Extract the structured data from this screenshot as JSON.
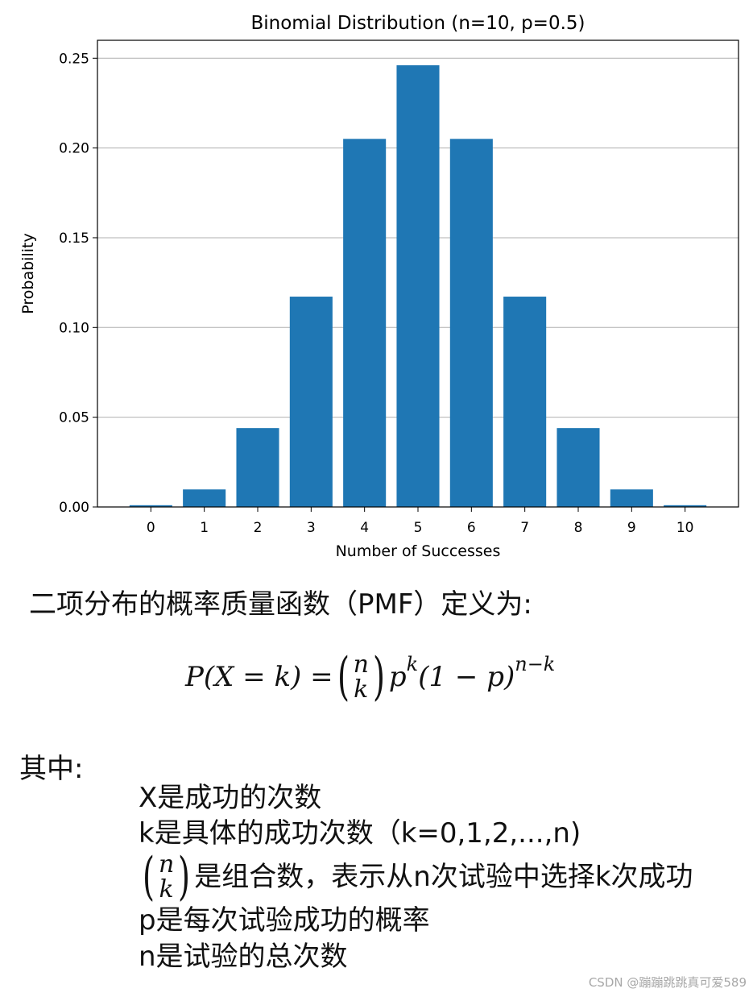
{
  "chart_data": {
    "type": "bar",
    "title": "Binomial Distribution (n=10, p=0.5)",
    "xlabel": "Number of Successes",
    "ylabel": "Probability",
    "categories": [
      "0",
      "1",
      "2",
      "3",
      "4",
      "5",
      "6",
      "7",
      "8",
      "9",
      "10"
    ],
    "values": [
      0.000977,
      0.009766,
      0.043945,
      0.117188,
      0.205078,
      0.246094,
      0.205078,
      0.117188,
      0.043945,
      0.009766,
      0.000977
    ],
    "ylim": [
      0,
      0.26
    ],
    "yticks": [
      "0.00",
      "0.05",
      "0.10",
      "0.15",
      "0.20",
      "0.25"
    ],
    "grid": "y",
    "color": "#1f77b4"
  },
  "text": {
    "intro": "二项分布的概率质量函数（PMF）定义为:",
    "formula_lhs": "P(X = k) = ",
    "formula_n": "n",
    "formula_k": "k",
    "formula_p": "p",
    "formula_exp_k": "k",
    "formula_mid": "(1 − p)",
    "formula_exp_nk": "n−k",
    "where": "其中:",
    "item_x": "X是成功的次数",
    "item_k": "k是具体的成功次数（k=0,1,2,...,n)",
    "item_binom_text": "是组合数，表示从n次试验中选择k次成功",
    "item_p": "p是每次试验成功的概率",
    "item_n": "n是试验的总次数",
    "watermark": "CSDN @蹦蹦跳跳真可爱589"
  }
}
